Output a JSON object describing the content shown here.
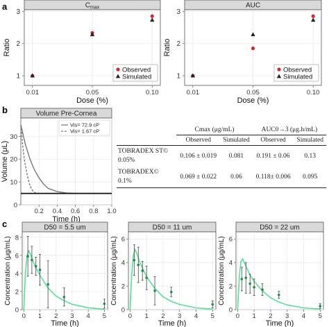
{
  "panel_labels": [
    "a",
    "b",
    "c"
  ],
  "chart_data": [
    {
      "id": "a-cmax",
      "type": "scatter",
      "title": "Cmax",
      "title_main": "C",
      "title_sub": "max",
      "xlabel": "Dose (%)",
      "ylabel": "Ratio",
      "categories": [
        "0.01",
        "0.05",
        "0.10"
      ],
      "ylim": [
        0.7,
        3.05
      ],
      "yticks": [
        1,
        2,
        3
      ],
      "series": [
        {
          "name": "Observed",
          "marker": "circle",
          "color": "#d62728",
          "values": [
            1.0,
            2.33,
            2.85
          ]
        },
        {
          "name": "Simulated",
          "marker": "triangle",
          "color": "#222222",
          "values": [
            1.0,
            2.28,
            2.73
          ]
        }
      ],
      "legend": "bottom-right",
      "grid": true
    },
    {
      "id": "a-auc",
      "type": "scatter",
      "title": "AUC",
      "xlabel": "Dose (%)",
      "ylabel": "Ratio",
      "categories": [
        "0.01",
        "0.05",
        "0.10"
      ],
      "ylim": [
        0.7,
        3.05
      ],
      "yticks": [
        1,
        2,
        3
      ],
      "series": [
        {
          "name": "Observed",
          "marker": "circle",
          "color": "#d62728",
          "values": [
            1.0,
            1.85,
            2.85
          ]
        },
        {
          "name": "Simulated",
          "marker": "triangle",
          "color": "#222222",
          "values": [
            1.0,
            2.28,
            2.73
          ]
        }
      ],
      "legend": "bottom-right",
      "grid": true
    },
    {
      "id": "b-volume",
      "type": "line",
      "title": "Volume Pre-Cornea",
      "xlabel": "Time (h)",
      "ylabel": "Volume (μL)",
      "xlim": [
        0,
        1.0
      ],
      "ylim": [
        0,
        38
      ],
      "xticks": [
        "0.2",
        "0.4",
        "0.6",
        "0.8",
        "1.0"
      ],
      "xtick_values": [
        0.2,
        0.4,
        0.6,
        0.8,
        1.0
      ],
      "yticks": [
        "0",
        "10",
        "20",
        "30"
      ],
      "ytick_values": [
        0,
        10,
        20,
        30
      ],
      "series": [
        {
          "name": "Vis= 72.9 cP",
          "style": "solid",
          "color": "#777777",
          "x": [
            0,
            0.05,
            0.1,
            0.15,
            0.2,
            0.25,
            0.3,
            0.4,
            0.5,
            0.6,
            0.7,
            0.8,
            1.0
          ],
          "y": [
            35,
            26.5,
            20.1,
            15.3,
            11.8,
            9.1,
            7.2,
            5.8,
            5.2,
            5.0,
            5.0,
            5.0,
            5.0
          ]
        },
        {
          "name": "Vis= 1.67 cP",
          "style": "dashed",
          "color": "#777777",
          "x": [
            0,
            0.02,
            0.04,
            0.06,
            0.08,
            0.1,
            0.12,
            0.14,
            0.16,
            0.2,
            1.0
          ],
          "y": [
            35,
            26.2,
            19.7,
            15.0,
            11.3,
            8.5,
            6.8,
            5.8,
            5.2,
            5.0,
            5.0
          ]
        },
        {
          "name": "",
          "style": "solid",
          "color": "#111111",
          "x": [
            0,
            1.0
          ],
          "y": [
            5.0,
            5.0
          ]
        }
      ],
      "legend": "top-right",
      "grid": true
    },
    {
      "id": "b-table",
      "type": "table",
      "header_groups": [
        "Cmax (μg/mL)",
        "AUC0→3 (μg.h/mL)"
      ],
      "columns": [
        "Observed",
        "Simulated",
        "Observed",
        "Simulated"
      ],
      "rows": [
        {
          "label_line1": "TOBRADEX ST©",
          "label_line2": "0.05%",
          "values": [
            "0.106 ± 0.019",
            "0.081",
            "0.191 ± 0.06",
            "0.13"
          ]
        },
        {
          "label_line1": "TOBRADEX©",
          "label_line2": "0.1%",
          "values": [
            "0.069 ± 0.022",
            "0.06",
            "0.118± 0.006",
            "0.095"
          ]
        }
      ]
    },
    {
      "id": "c-d50-5.5",
      "type": "scatter",
      "title": "D50 = 5.5 um",
      "xlabel": "Time (h)",
      "ylabel": "Concentration (μg/mL)",
      "xlim": [
        -0.1,
        5.2
      ],
      "ylim": [
        0,
        8.6
      ],
      "xticks": [
        0,
        1,
        2,
        3,
        4,
        5
      ],
      "yticks": [
        0,
        2,
        4,
        6,
        8
      ],
      "observed": {
        "x": [
          0.25,
          0.5,
          0.75,
          1.0,
          1.5,
          2.5,
          5.0
        ],
        "y": [
          5.9,
          5.5,
          4.8,
          4.4,
          2.8,
          1.4,
          0.65
        ],
        "err": [
          2.2,
          1.5,
          1.0,
          1.7,
          2.6,
          1.0,
          0.5
        ]
      },
      "simulated": {
        "x": [
          0,
          0.1,
          0.2,
          0.3,
          0.4,
          0.5,
          0.7,
          1.0,
          1.5,
          2.0,
          2.5,
          3.0,
          4.0,
          5.0
        ],
        "y": [
          0,
          4.0,
          6.0,
          6.5,
          6.2,
          5.7,
          4.8,
          3.8,
          2.4,
          1.5,
          1.0,
          0.6,
          0.2,
          0.05
        ]
      }
    },
    {
      "id": "c-d50-11",
      "type": "scatter",
      "title": "D50 = 11 um",
      "xlabel": "Time (h)",
      "ylabel": "Concentration (μg/mL)",
      "xlim": [
        -0.1,
        5.2
      ],
      "ylim": [
        0,
        6.6
      ],
      "xticks": [
        0,
        1,
        2,
        3,
        4,
        5
      ],
      "yticks": [
        0,
        2,
        4,
        6
      ],
      "observed": {
        "x": [
          0.25,
          0.5,
          0.75,
          1.0,
          1.5,
          2.5,
          5.0
        ],
        "y": [
          4.2,
          3.8,
          3.3,
          2.7,
          1.6,
          1.5,
          0.45
        ],
        "err": [
          1.3,
          1.5,
          0.8,
          1.0,
          1.2,
          0.4,
          0.3
        ]
      },
      "simulated": {
        "x": [
          0,
          0.1,
          0.2,
          0.3,
          0.4,
          0.6,
          0.8,
          1.0,
          1.5,
          2.0,
          2.5,
          3.0,
          4.0,
          5.0
        ],
        "y": [
          0,
          3.0,
          4.6,
          5.1,
          4.8,
          4.0,
          3.4,
          2.8,
          1.8,
          1.1,
          0.7,
          0.45,
          0.15,
          0.05
        ]
      }
    },
    {
      "id": "c-d50-22",
      "type": "scatter",
      "title": "D50 = 22 um",
      "xlabel": "Time (h)",
      "ylabel": "Concentration (μg/mL)",
      "xlim": [
        -0.1,
        5.2
      ],
      "ylim": [
        0,
        6.6
      ],
      "xticks": [
        0,
        1,
        2,
        3,
        4,
        5
      ],
      "yticks": [
        0,
        2,
        4,
        6
      ],
      "observed": {
        "x": [
          0.25,
          0.5,
          0.75,
          1.0,
          1.5,
          2.5,
          5.0
        ],
        "y": [
          2.6,
          2.7,
          2.2,
          1.9,
          1.7,
          1.25,
          0.3
        ],
        "err": [
          1.0,
          1.3,
          0.8,
          0.7,
          0.5,
          0.3,
          0.2
        ]
      },
      "simulated": {
        "x": [
          0,
          0.1,
          0.2,
          0.3,
          0.4,
          0.6,
          0.8,
          1.0,
          1.5,
          2.0,
          2.5,
          3.0,
          4.0,
          5.0
        ],
        "y": [
          0,
          2.8,
          4.1,
          4.3,
          4.0,
          3.4,
          2.8,
          2.4,
          1.6,
          1.0,
          0.65,
          0.4,
          0.15,
          0.05
        ]
      }
    }
  ],
  "colors": {
    "observed": "#d62728",
    "simulated": "#222222",
    "pk_curve": "#57e09a",
    "pk_points": "#1a8f4a",
    "strip": "#d9d9d9",
    "grid": "#e6e6e6"
  }
}
